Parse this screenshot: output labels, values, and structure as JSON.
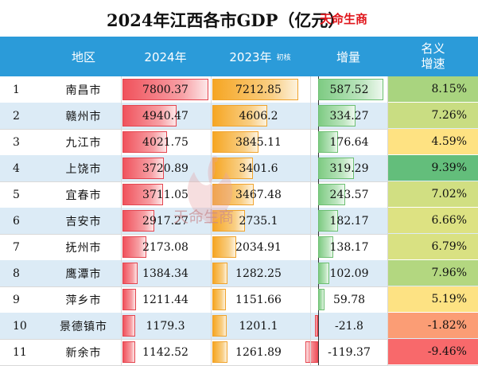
{
  "title": "2024年江西各市GDP（亿元）",
  "brand": "天命生商",
  "watermark_text": "天命生商",
  "headers": {
    "region": "地区",
    "y2024": "2024年",
    "y2023": "2023年",
    "y2023_note": "初核",
    "increase": "增量",
    "rate": "名义增速"
  },
  "colors": {
    "header_bg": "#2b9bd9",
    "bar_2024": "#f0525c",
    "bar_2023": "#f6a623",
    "bar_increase": "#7ecb83",
    "bar_negative": "#f0525c"
  },
  "chart_data": {
    "type": "table",
    "title": "2024年江西各市GDP（亿元）",
    "columns": [
      "地区",
      "2024年",
      "2023年 初核",
      "增量",
      "名义增速"
    ],
    "rows": [
      {
        "rank": "1",
        "city": "南昌市",
        "gdp2024": 7800.37,
        "gdp2024_text": "7800.37",
        "gdp2023": 7212.85,
        "gdp2023_text": "7212.85",
        "increase": 587.52,
        "increase_text": "587.52",
        "rate": 8.15,
        "rate_text": "8.15%",
        "rate_color": "#a9d47f"
      },
      {
        "rank": "2",
        "city": "赣州市",
        "gdp2024": 4940.47,
        "gdp2024_text": "4940.47",
        "gdp2023": 4606.2,
        "gdp2023_text": "4606.2",
        "increase": 334.27,
        "increase_text": "334.27",
        "rate": 7.26,
        "rate_text": "7.26%",
        "rate_color": "#c9dd82"
      },
      {
        "rank": "3",
        "city": "九江市",
        "gdp2024": 4021.75,
        "gdp2024_text": "4021.75",
        "gdp2023": 3845.11,
        "gdp2023_text": "3845.11",
        "increase": 176.64,
        "increase_text": "176.64",
        "rate": 4.59,
        "rate_text": "4.59%",
        "rate_color": "#fee282"
      },
      {
        "rank": "4",
        "city": "上饶市",
        "gdp2024": 3720.89,
        "gdp2024_text": "3720.89",
        "gdp2023": 3401.6,
        "gdp2023_text": "3401.6",
        "increase": 319.29,
        "increase_text": "319.29",
        "rate": 9.39,
        "rate_text": "9.39%",
        "rate_color": "#63be7b"
      },
      {
        "rank": "5",
        "city": "宜春市",
        "gdp2024": 3711.05,
        "gdp2024_text": "3711.05",
        "gdp2023": 3467.48,
        "gdp2023_text": "3467.48",
        "increase": 243.57,
        "increase_text": "243.57",
        "rate": 7.02,
        "rate_text": "7.02%",
        "rate_color": "#d1df82"
      },
      {
        "rank": "6",
        "city": "吉安市",
        "gdp2024": 2917.27,
        "gdp2024_text": "2917.27",
        "gdp2023": 2735.1,
        "gdp2023_text": "2735.1",
        "increase": 182.17,
        "increase_text": "182.17",
        "rate": 6.66,
        "rate_text": "6.66%",
        "rate_color": "#ddE282"
      },
      {
        "rank": "7",
        "city": "抚州市",
        "gdp2024": 2173.08,
        "gdp2024_text": "2173.08",
        "gdp2023": 2034.91,
        "gdp2023_text": "2034.91",
        "increase": 138.17,
        "increase_text": "138.17",
        "rate": 6.79,
        "rate_text": "6.79%",
        "rate_color": "#d9e182"
      },
      {
        "rank": "8",
        "city": "鹰潭市",
        "gdp2024": 1384.34,
        "gdp2024_text": "1384.34",
        "gdp2023": 1282.25,
        "gdp2023_text": "1282.25",
        "increase": 102.09,
        "increase_text": "102.09",
        "rate": 7.96,
        "rate_text": "7.96%",
        "rate_color": "#b3d780"
      },
      {
        "rank": "9",
        "city": "萍乡市",
        "gdp2024": 1211.44,
        "gdp2024_text": "1211.44",
        "gdp2023": 1151.66,
        "gdp2023_text": "1151.66",
        "increase": 59.78,
        "increase_text": "59.78",
        "rate": 5.19,
        "rate_text": "5.19%",
        "rate_color": "#fde283"
      },
      {
        "rank": "10",
        "city": "景德镇市",
        "gdp2024": 1179.3,
        "gdp2024_text": "1179.3",
        "gdp2023": 1201.1,
        "gdp2023_text": "1201.1",
        "increase": -21.8,
        "increase_text": "-21.8",
        "rate": -1.82,
        "rate_text": "-1.82%",
        "rate_color": "#fb9d75"
      },
      {
        "rank": "11",
        "city": "新余市",
        "gdp2024": 1142.52,
        "gdp2024_text": "1142.52",
        "gdp2023": 1261.89,
        "gdp2023_text": "1261.89",
        "increase": -119.37,
        "increase_text": "-119.37",
        "rate": -9.46,
        "rate_text": "-9.46%",
        "rate_color": "#f8696b"
      }
    ]
  }
}
